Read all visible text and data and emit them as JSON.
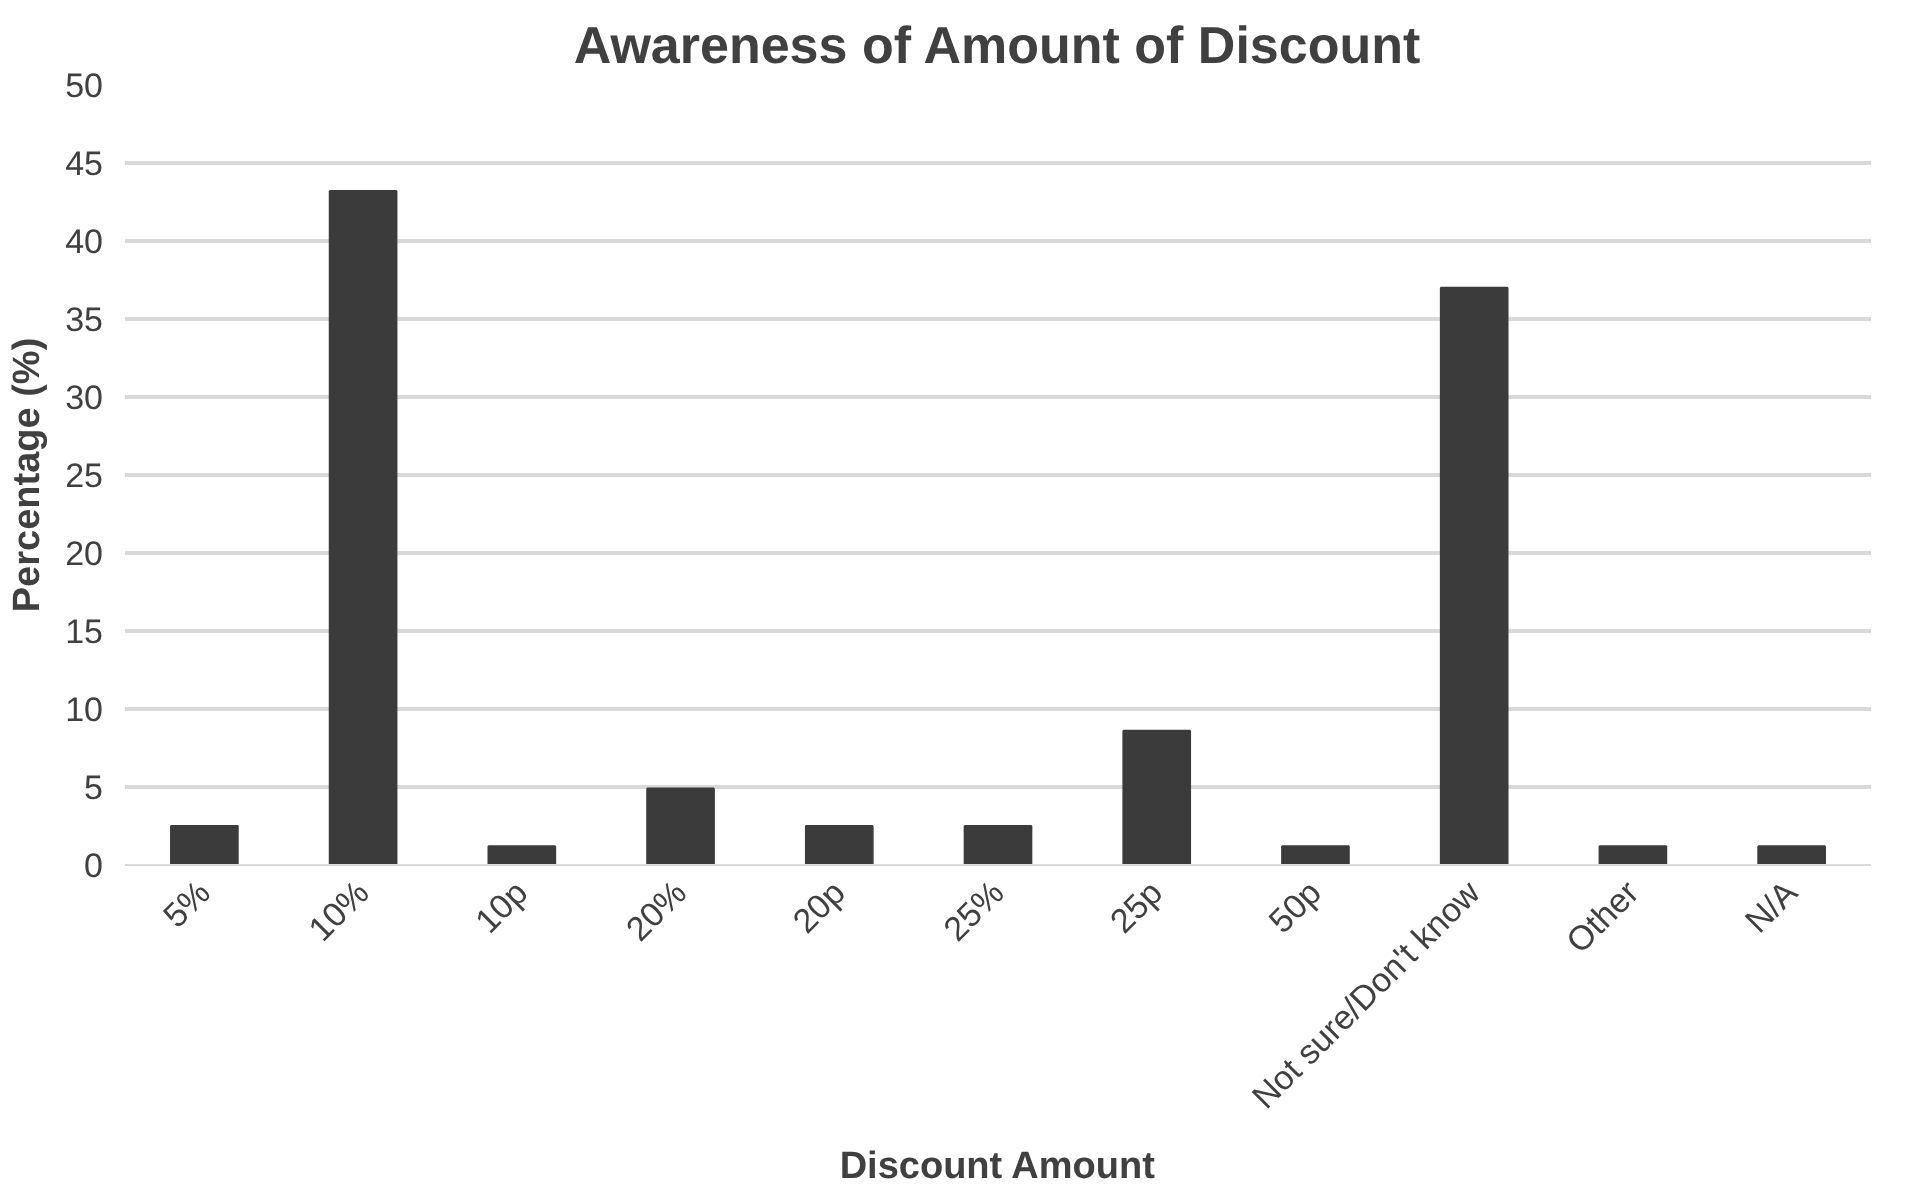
{
  "chart_data": {
    "type": "bar",
    "title": "Awareness of Amount of Discount",
    "xlabel": "Discount Amount",
    "ylabel": "Percentage (%)",
    "categories": [
      "5%",
      "10%",
      "10p",
      "20%",
      "20p",
      "25%",
      "25p",
      "50p",
      "Not sure/Don't know",
      "Other",
      "N/A"
    ],
    "values": [
      2.5,
      43.2,
      1.2,
      4.9,
      2.5,
      2.5,
      8.6,
      1.2,
      37.0,
      1.2,
      1.2
    ],
    "color": "#3b3b3b",
    "ylim": [
      0,
      50
    ],
    "yticks": [
      0,
      5,
      10,
      15,
      20,
      25,
      30,
      35,
      40,
      45,
      50
    ],
    "grid": "y"
  }
}
